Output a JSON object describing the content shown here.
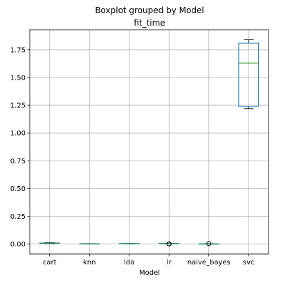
{
  "chart_data": {
    "type": "box",
    "suptitle": "Boxplot grouped by Model",
    "title": "fit_time",
    "xlabel": "Model",
    "ylabel": "",
    "categories": [
      "cart",
      "knn",
      "lda",
      "lr",
      "naive_bayes",
      "svc"
    ],
    "yticks": [
      "0.00",
      "0.25",
      "0.50",
      "0.75",
      "1.00",
      "1.25",
      "1.50",
      "1.75"
    ],
    "ylim": [
      -0.09,
      1.93
    ],
    "grid": true,
    "boxes": [
      {
        "category": "cart",
        "whislo": 0.004,
        "q1": 0.006,
        "median": 0.008,
        "q3": 0.01,
        "whishi": 0.012,
        "fliers": []
      },
      {
        "category": "knn",
        "whislo": 0.001,
        "q1": 0.002,
        "median": 0.003,
        "q3": 0.003,
        "whishi": 0.004,
        "fliers": []
      },
      {
        "category": "lda",
        "whislo": 0.002,
        "q1": 0.003,
        "median": 0.004,
        "q3": 0.004,
        "whishi": 0.005,
        "fliers": []
      },
      {
        "category": "lr",
        "whislo": 0.003,
        "q1": 0.004,
        "median": 0.005,
        "q3": 0.006,
        "whishi": 0.007,
        "fliers": [
          0.0,
          0.002
        ]
      },
      {
        "category": "naive_bayes",
        "whislo": 0.001,
        "q1": 0.001,
        "median": 0.002,
        "q3": 0.002,
        "whishi": 0.003,
        "fliers": [
          0.004
        ]
      },
      {
        "category": "svc",
        "whislo": 1.22,
        "q1": 1.24,
        "median": 1.63,
        "q3": 1.81,
        "whishi": 1.84,
        "fliers": []
      }
    ],
    "colors": {
      "box": "#1f77b4",
      "median": "#2ca02c",
      "whisker": "#000000",
      "grid": "#b0b0b0"
    }
  }
}
